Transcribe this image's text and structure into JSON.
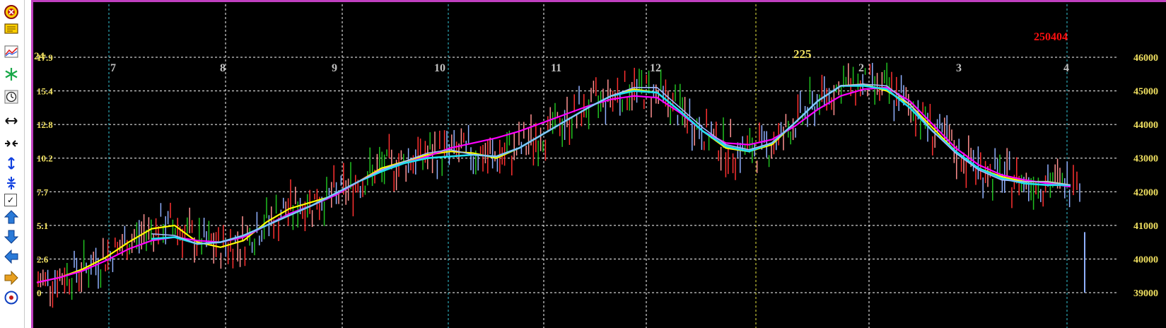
{
  "toolbar": {
    "items": [
      {
        "name": "target-circle-icon",
        "kind": "icon"
      },
      {
        "name": "message-box-icon",
        "kind": "icon"
      },
      {
        "name": "line-chart-icon",
        "kind": "icon"
      },
      {
        "name": "snowflake-icon",
        "kind": "icon"
      },
      {
        "name": "clock-icon",
        "kind": "icon"
      },
      {
        "name": "horizontal-expand-icon",
        "kind": "icon"
      },
      {
        "name": "horizontal-compress-icon",
        "kind": "icon"
      },
      {
        "name": "vertical-expand-icon",
        "kind": "icon"
      },
      {
        "name": "vertical-compress-icon",
        "kind": "icon"
      },
      {
        "name": "checkbox",
        "kind": "checkbox",
        "checked": true,
        "mark": "✓"
      },
      {
        "name": "arrow-up-icon",
        "kind": "icon"
      },
      {
        "name": "arrow-down-icon",
        "kind": "icon"
      },
      {
        "name": "arrow-left-icon",
        "kind": "icon"
      },
      {
        "name": "arrow-right-icon",
        "kind": "icon"
      },
      {
        "name": "crosshair-circle-icon",
        "kind": "icon"
      }
    ]
  },
  "chart_data": {
    "type": "candlestick",
    "top_left_label": "24",
    "top_right_label": "250404",
    "mid_label": "225",
    "x_month_labels": [
      "7",
      "8",
      "9",
      "10",
      "11",
      "12",
      "2",
      "3",
      "4"
    ],
    "left_axis": {
      "ticks": [
        "0",
        "2.6",
        "5.1",
        "7.7",
        "10.2",
        "12.8",
        "15.4",
        "17.9"
      ]
    },
    "right_axis": {
      "ticks": [
        "39000",
        "40000",
        "41000",
        "42000",
        "43000",
        "44000",
        "45000",
        "46000"
      ],
      "ylim": [
        39000,
        46000
      ]
    },
    "grid": true,
    "colors": {
      "background": "#000000",
      "frame": "#c040c0",
      "grid": "#ffffff",
      "month_separator": "#33c8d8",
      "year_separator": "#e8e840",
      "left_axis_text": "#f0e060",
      "right_axis_text": "#f0e060",
      "month_text": "#c0c0c0",
      "top_right_label": "#ff1010",
      "mid_label": "#f0e060",
      "candle_up": "#ff3030",
      "candle_down": "#90b0ff",
      "candle_green": "#20c020",
      "candle_pink": "#ff9090",
      "ma_yellow": "#ffff00",
      "ma_magenta": "#ff00ff",
      "ma_cyan": "#20e0f0",
      "ma_lightblue": "#a0b8ff"
    },
    "series": [
      {
        "name": "",
        "color": "#ffff00",
        "values": [
          39300,
          39450,
          39700,
          40050,
          40500,
          40900,
          41000,
          40500,
          40350,
          40550,
          41100,
          41500,
          41700,
          41900,
          42300,
          42700,
          42900,
          43100,
          43200,
          43150,
          43000,
          43300,
          43700,
          44100,
          44500,
          44850,
          45050,
          44950,
          44400,
          43800,
          43300,
          43200,
          43400,
          44050,
          44700,
          45150,
          45200,
          45000,
          44600,
          43900,
          43200,
          42700,
          42450,
          42300,
          42300,
          42200
        ]
      },
      {
        "name": "",
        "color": "#ff00ff",
        "values": [
          39300,
          39450,
          39650,
          39950,
          40300,
          40550,
          40650,
          40550,
          40500,
          40650,
          41000,
          41350,
          41600,
          41900,
          42300,
          42650,
          42850,
          43050,
          43300,
          43450,
          43600,
          43800,
          44050,
          44300,
          44550,
          44750,
          44850,
          44800,
          44350,
          43800,
          43450,
          43400,
          43550,
          43950,
          44450,
          44850,
          45050,
          45100,
          44700,
          44000,
          43300,
          42800,
          42500,
          42350,
          42250,
          42150
        ]
      },
      {
        "name": "",
        "color": "#20e0f0",
        "values": [
          null,
          null,
          null,
          null,
          null,
          40600,
          40650,
          40450,
          40500,
          40700,
          41000,
          41300,
          41600,
          41950,
          42300,
          42600,
          42850,
          43000,
          43050,
          43100,
          43050,
          43300,
          43700,
          44100,
          44500,
          44850,
          45000,
          44950,
          44400,
          43800,
          43350,
          43200,
          43450,
          44050,
          44700,
          45150,
          45150,
          45050,
          44500,
          43800,
          43200,
          42700,
          42400,
          42250,
          42200,
          42200
        ]
      },
      {
        "name": "",
        "color": "#a0b8ff",
        "values": [
          null,
          null,
          null,
          null,
          null,
          40750,
          40700,
          40450,
          40500,
          40700,
          41000,
          41300,
          41600,
          41950,
          42300,
          42650,
          42900,
          43150,
          43250,
          43100,
          43050,
          43300,
          43700,
          44100,
          44500,
          44850,
          45100,
          45100,
          44500,
          43900,
          43400,
          43250,
          43450,
          44050,
          44700,
          45150,
          45200,
          45150,
          44600,
          43800,
          43150,
          42650,
          42350,
          42300,
          42300,
          42200
        ]
      }
    ]
  }
}
